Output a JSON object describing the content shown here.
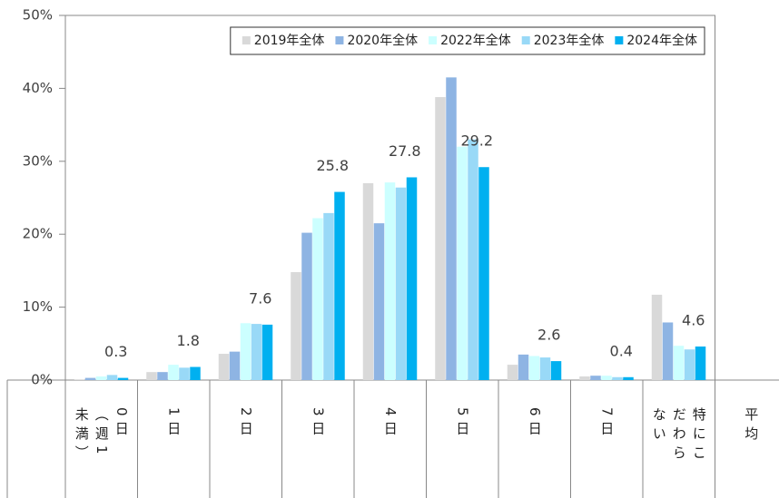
{
  "chart_data": {
    "type": "bar",
    "categories": [
      "0日（週1未満）",
      "1日",
      "2日",
      "3日",
      "4日",
      "5日",
      "6日",
      "7日",
      "特にこだわらない",
      "平均"
    ],
    "series": [
      {
        "name": "2019年全体",
        "color": "#d9d9d9",
        "values": [
          0.1,
          1.1,
          3.6,
          14.8,
          27.0,
          38.8,
          2.1,
          0.5,
          11.7,
          null
        ]
      },
      {
        "name": "2020年全体",
        "color": "#8eb4e3",
        "values": [
          0.3,
          1.1,
          3.9,
          20.2,
          21.5,
          41.5,
          3.5,
          0.6,
          7.9,
          null
        ]
      },
      {
        "name": "2022年全体",
        "color": "#ccffff",
        "values": [
          0.5,
          2.1,
          7.8,
          22.2,
          27.1,
          32.0,
          3.3,
          0.6,
          4.7,
          null
        ]
      },
      {
        "name": "2023年全体",
        "color": "#99d9f7",
        "values": [
          0.7,
          1.7,
          7.7,
          22.9,
          26.4,
          33.0,
          3.1,
          0.4,
          4.2,
          null
        ]
      },
      {
        "name": "2024年全体",
        "color": "#00b0f0",
        "values": [
          0.3,
          1.8,
          7.6,
          25.8,
          27.8,
          29.2,
          2.6,
          0.4,
          4.6,
          null
        ],
        "show_labels": true
      }
    ],
    "ylim": [
      0,
      50
    ],
    "yticks": [
      {
        "value": 0,
        "label": "0%"
      },
      {
        "value": 10,
        "label": "10%"
      },
      {
        "value": 20,
        "label": "20%"
      },
      {
        "value": 30,
        "label": "30%"
      },
      {
        "value": 40,
        "label": "40%"
      },
      {
        "value": 50,
        "label": "50%"
      }
    ],
    "legend": "top-right",
    "grid": false
  }
}
